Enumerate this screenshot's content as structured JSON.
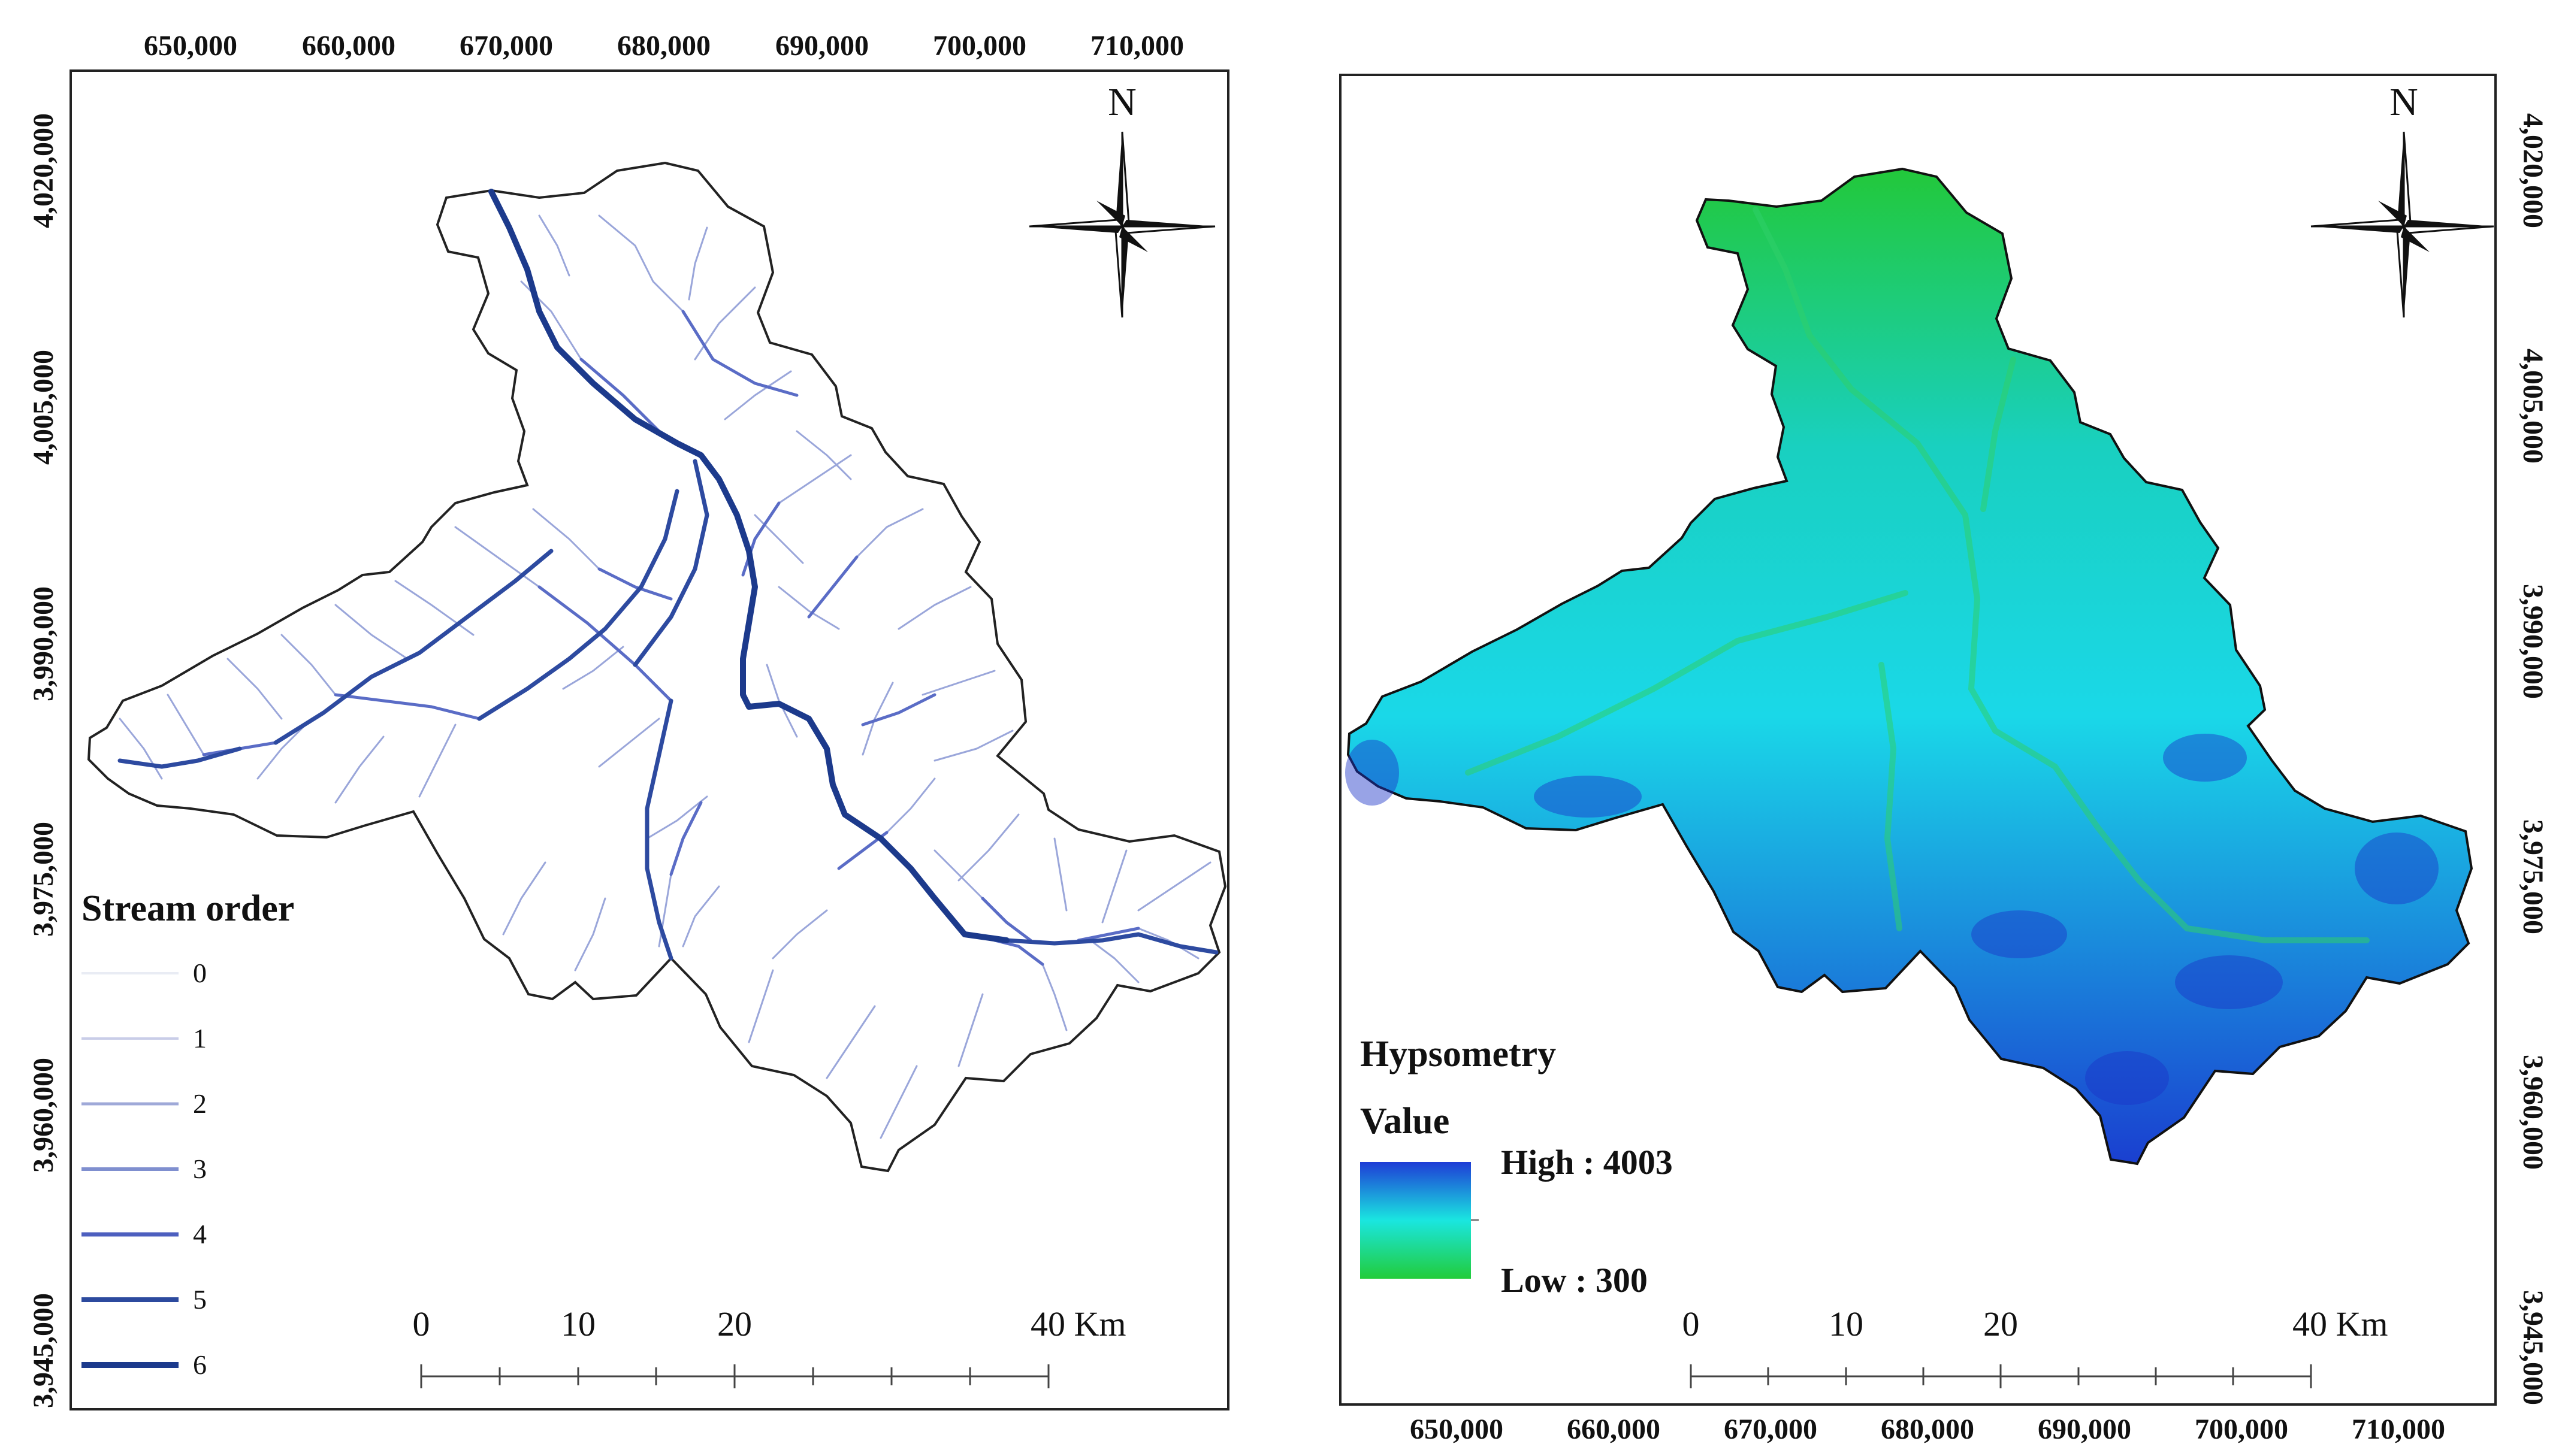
{
  "maps": [
    {
      "id": "stream-order-map",
      "top_ticks": [
        "650,000",
        "660,000",
        "670,000",
        "680,000",
        "690,000",
        "700,000",
        "710,000"
      ],
      "left_ticks": [
        "4,020,000",
        "4,005,000",
        "3,990,000",
        "3,975,000",
        "3,960,000",
        "3,945,000"
      ],
      "north_label": "N",
      "legend": {
        "title": "Stream order",
        "items": [
          {
            "label": "0",
            "color": "#e9ecf4"
          },
          {
            "label": "1",
            "color": "#c9cde8"
          },
          {
            "label": "2",
            "color": "#9fa9d8"
          },
          {
            "label": "3",
            "color": "#7f8fcf"
          },
          {
            "label": "4",
            "color": "#4d5fbf"
          },
          {
            "label": "5",
            "color": "#2c4a9e"
          },
          {
            "label": "6",
            "color": "#1c3a8c"
          }
        ]
      },
      "scale_bar": {
        "labels": [
          "0",
          "10",
          "20",
          "40 Km"
        ]
      }
    },
    {
      "id": "hypsometry-map",
      "bottom_ticks": [
        "650,000",
        "660,000",
        "670,000",
        "680,000",
        "690,000",
        "700,000",
        "710,000"
      ],
      "right_ticks": [
        "4,020,000",
        "4,005,000",
        "3,990,000",
        "3,975,000",
        "3,960,000",
        "3,945,000"
      ],
      "north_label": "N",
      "legend": {
        "title": "Hypsometry",
        "subtitle": "Value",
        "high_label": "High : 4003",
        "low_label": "Low : 300",
        "high_color": "#1e3cd6",
        "mid_color": "#1ae6e0",
        "low_color": "#22cc3a"
      },
      "scale_bar": {
        "labels": [
          "0",
          "10",
          "20",
          "40 Km"
        ]
      }
    }
  ]
}
